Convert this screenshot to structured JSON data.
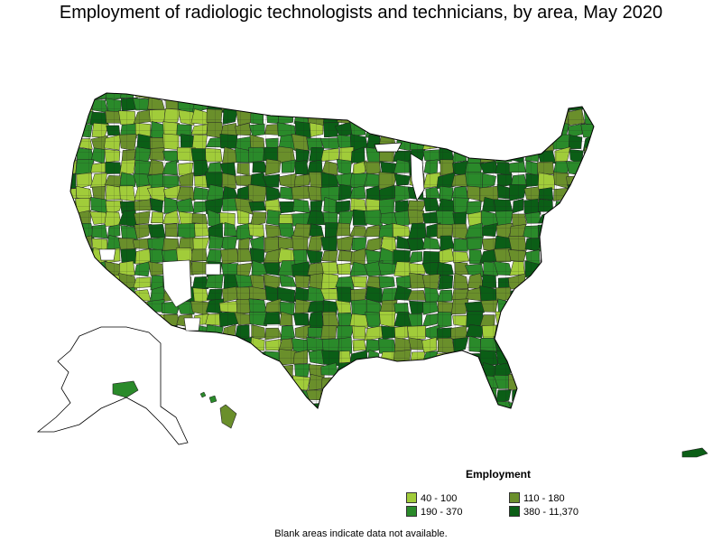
{
  "title": "Employment of radiologic technologists and technicians, by area, May 2020",
  "legend": {
    "title": "Employment",
    "items": [
      {
        "label": "40 - 100",
        "color": "#a1cc3a"
      },
      {
        "label": "110 - 180",
        "color": "#6a8f2b"
      },
      {
        "label": "190 - 370",
        "color": "#2a8a2a"
      },
      {
        "label": "380 - 11,370",
        "color": "#0b5e16"
      }
    ]
  },
  "footnote": "Blank areas indicate data not available.",
  "colors": {
    "no_data": "#ffffff",
    "border": "#222222",
    "outline": "#000000"
  }
}
